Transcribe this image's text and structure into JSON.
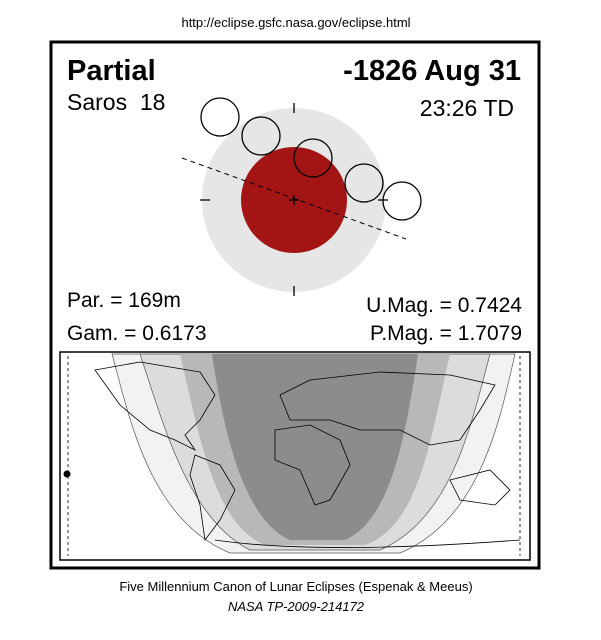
{
  "header": {
    "url": "http://eclipse.gsfc.nasa.gov/eclipse.html"
  },
  "panel": {
    "eclipse_type": "Partial",
    "date": "-1826 Aug 31",
    "saros": "Saros  18",
    "time": "23:26 TD",
    "parameters": {
      "par": "Par. = 169m",
      "gam": "Gam. = 0.6173",
      "umag": "U.Mag. = 0.7424",
      "pmag": "P.Mag. = 1.7079"
    }
  },
  "footer": {
    "caption": "Five Millennium Canon of Lunar Eclipses (Espenak & Meeus)",
    "publication": "NASA TP-2009-214172"
  }
}
